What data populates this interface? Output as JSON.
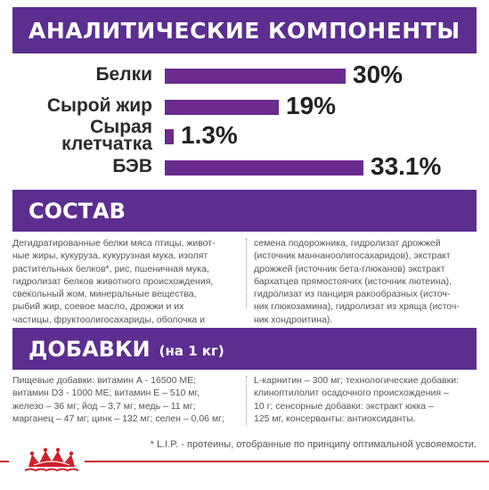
{
  "analytics": {
    "title": "АНАЛИТИЧЕСКИЕ КОМПОНЕНТЫ",
    "rows": [
      {
        "label": "Белки",
        "value": "30%",
        "fraction": 0.3
      },
      {
        "label": "Сырой жир",
        "value": "19%",
        "fraction": 0.19
      },
      {
        "label": "Сырая\nклетчатка",
        "value": "1.3%",
        "fraction": 0.013
      },
      {
        "label": "БЭВ",
        "value": "33.1%",
        "fraction": 0.331
      }
    ]
  },
  "composition": {
    "title": "СОСТАВ",
    "col1": "Дегидратированные белки мяса птицы, живот-\nные жиры, кукуруза, кукурузная мука, изолят\nрастительных белков*, рис, пшеничная мука,\nгидролизат белков животного происхождения,\nсвекольный жом, минеральные вещества,\nрыбий жир, соевое масло, дрожжи и их\nчастицы, фруктоолигосахариды, оболочка и",
    "col2": "семена подорожника, гидролизат дрожжей\n(источник маннаноолигосахаридов), экстракт\nдрожжей (источник бета-глюканов) экстракт\nбархатцев прямостоячих (источник лютеина),\nгидролизат из панциря ракообразных (источ-\nник глюкозамина), гидролизат из хряща (источ-\nник хондроитина)."
  },
  "additives": {
    "title": "ДОБАВКИ",
    "subtitle": "(на 1 кг)",
    "col1": "Пищевые добавки: витамин А - 16500 МЕ;\nвитамин D3 - 1000 МЕ; витамин Е – 510 мг,\nжелезо – 36 мг; йод – 3,7 мг; медь – 11 мг;\nмарганец – 47 мг; цинк – 132 мг; селен – 0,06 мг;",
    "col2": "L-карнитин – 300 мг; технологические добавки:\nклиноптилолит осадочного происхождения –\n10 г; сенсорные добавки: экстракт юкка –\n125 мг, консерванты: антиоксиданты."
  },
  "footnote": "* L.I.P. - протеины, отобранные по принципу оптимальной усвояемости.",
  "colors": {
    "brand_purple": "#5b2e90",
    "bar_purple": "#6a2a8e",
    "brand_red": "#d0202b"
  },
  "logo_icon": "royal-canin-crown-logo"
}
